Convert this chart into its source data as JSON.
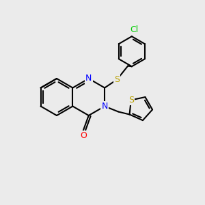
{
  "background_color": "#ebebeb",
  "bond_color": "#000000",
  "atom_colors": {
    "N": "#0000ff",
    "O": "#ff0000",
    "S": "#b8a000",
    "Cl": "#00cc00"
  },
  "font_size": 9,
  "lw": 1.5
}
